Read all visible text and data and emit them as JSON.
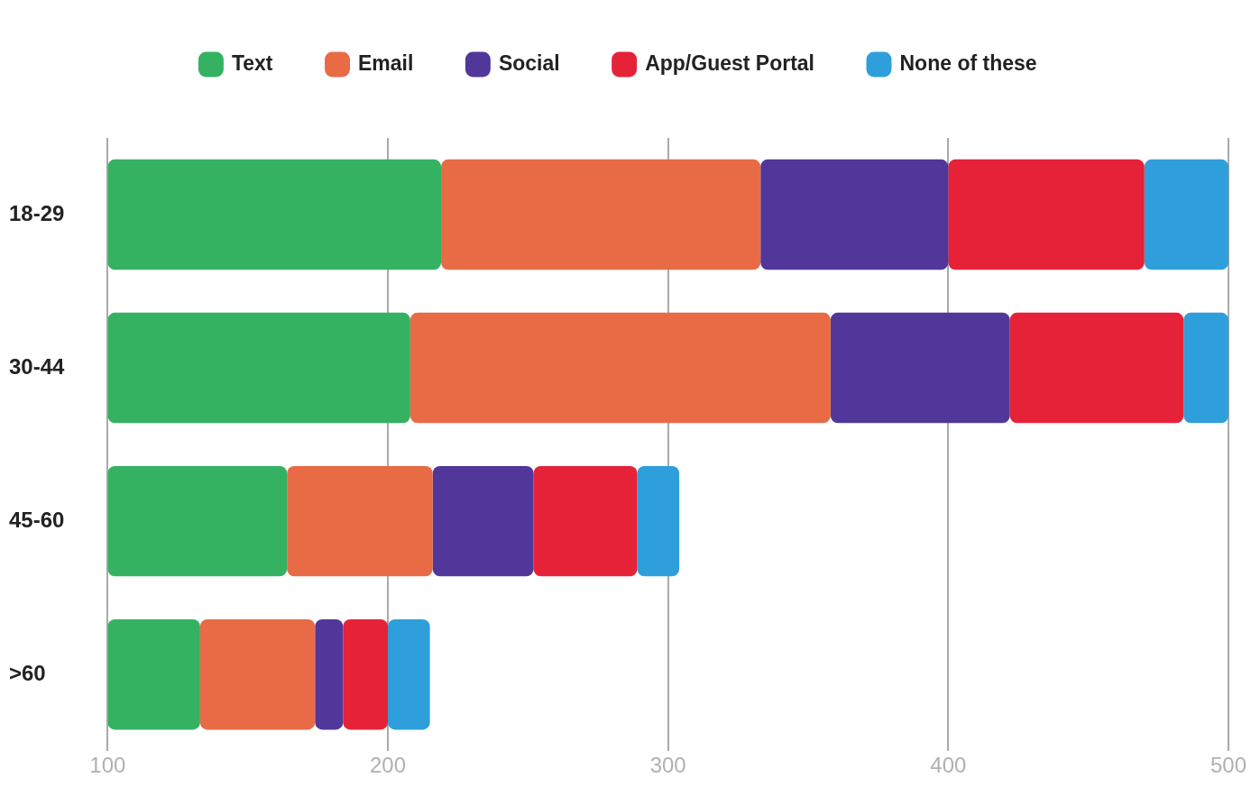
{
  "chart_data": {
    "type": "bar",
    "orientation": "horizontal",
    "categories": [
      "18-29",
      "30-44",
      "45-60",
      ">60"
    ],
    "series": [
      {
        "name": "Text",
        "color": "#34b262",
        "base": [
          100,
          100,
          100,
          100
        ],
        "values": [
          119,
          108,
          64,
          33
        ]
      },
      {
        "name": "Email",
        "color": "#e86b45",
        "base": [
          219,
          208,
          164,
          133
        ],
        "values": [
          114,
          150,
          52,
          41
        ]
      },
      {
        "name": "Social",
        "color": "#51379a",
        "base": [
          333,
          358,
          216,
          174
        ],
        "values": [
          67,
          64,
          36,
          10
        ]
      },
      {
        "name": "App/Guest Portal",
        "color": "#e52238",
        "base": [
          400,
          422,
          252,
          184
        ],
        "values": [
          70,
          62,
          37,
          16
        ]
      },
      {
        "name": "None of these",
        "color": "#2e9fdb",
        "base": [
          470,
          484,
          289,
          200
        ],
        "values": [
          30,
          16,
          15,
          15
        ]
      }
    ],
    "xlim": [
      100,
      500
    ],
    "xticks": [
      100,
      200,
      300,
      400,
      500
    ],
    "grid": "x",
    "legend": "top"
  }
}
